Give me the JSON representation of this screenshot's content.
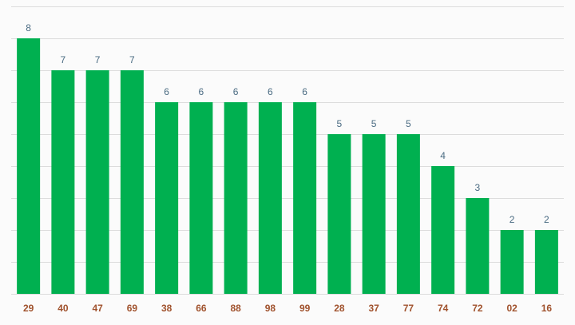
{
  "chart_data": {
    "type": "bar",
    "categories": [
      "29",
      "40",
      "47",
      "69",
      "38",
      "66",
      "88",
      "98",
      "99",
      "28",
      "37",
      "77",
      "74",
      "72",
      "02",
      "16"
    ],
    "values": [
      8,
      7,
      7,
      7,
      6,
      6,
      6,
      6,
      6,
      5,
      5,
      5,
      4,
      3,
      2,
      2
    ],
    "ylim": [
      0,
      9
    ],
    "grid": true,
    "show_data_labels": true,
    "colors": {
      "bar": "#00b050",
      "data_label": "#4a6b82",
      "tick_label": "#a0522d",
      "grid": "#dcdcdc"
    }
  }
}
